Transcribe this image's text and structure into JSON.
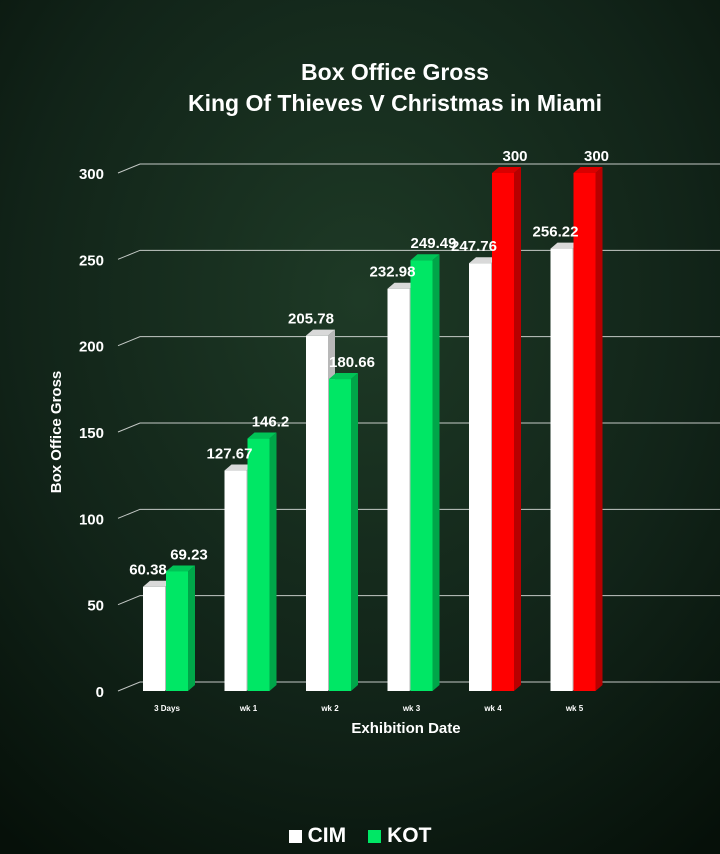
{
  "chart_data": {
    "type": "bar",
    "title_lines": [
      "Box Office Gross",
      "King Of Thieves  V Christmas in Miami"
    ],
    "xlabel": "Exhibition Date",
    "ylabel": "Box Office Gross",
    "categories": [
      "3 Days",
      "wk 1",
      "wk 2",
      "wk 3",
      "wk 4",
      "wk 5"
    ],
    "series": [
      {
        "name": "CIM",
        "values": [
          60.38,
          127.67,
          205.78,
          232.98,
          247.76,
          256.22
        ]
      },
      {
        "name": "KOT",
        "values": [
          69.23,
          146.2,
          180.66,
          249.49,
          300,
          300
        ]
      }
    ],
    "data_labels": [
      [
        "60.38",
        "127.67",
        "205.78",
        "232.98",
        "247.76",
        "256.22"
      ],
      [
        "69.23",
        "146.2",
        "180.66",
        "249.49",
        "300",
        "300"
      ]
    ],
    "ylim": [
      0,
      300
    ],
    "yticks": [
      0,
      50,
      100,
      150,
      200,
      250,
      300
    ],
    "grid": true,
    "legend_position": "bottom",
    "colors": {
      "CIM": "#ffffff",
      "KOT": "#00e765",
      "KOT_highlight": "#ff0000",
      "background": "#0b1a10"
    },
    "highlight_categories": [
      "wk 4",
      "wk 5"
    ]
  }
}
